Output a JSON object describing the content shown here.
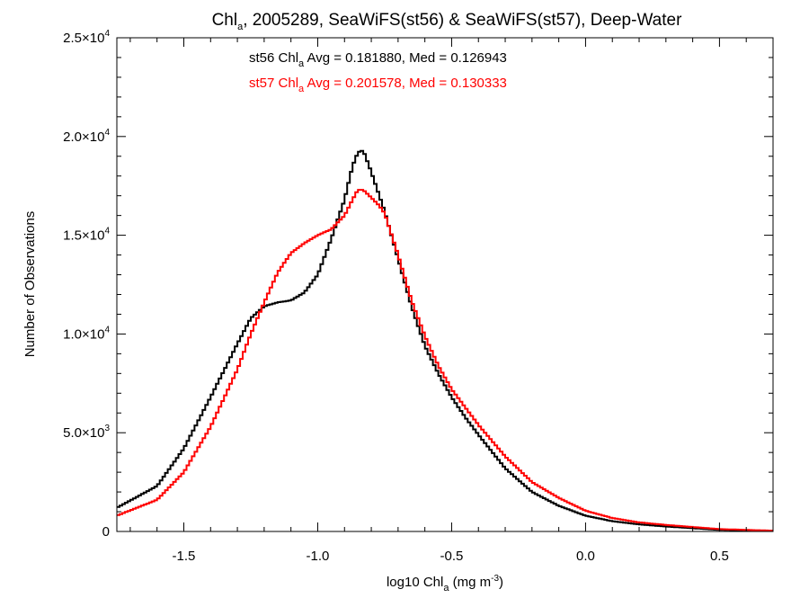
{
  "chart_data": {
    "type": "line",
    "title": {
      "pre": "Chl",
      "sub": "a",
      "post": ", 2005289, SeaWiFS(st56) & SeaWiFS(st57), Deep-Water"
    },
    "xlabel": {
      "pre": "log10 Chl",
      "sub": "a",
      "mid": " (mg m",
      "sup": "-3",
      "post": ")"
    },
    "ylabel": "Number of Observations",
    "xlim": [
      -1.75,
      0.7
    ],
    "ylim": [
      0,
      25000
    ],
    "grid": false,
    "x_ticks": [
      {
        "value": -1.5,
        "label": "-1.5"
      },
      {
        "value": -1.0,
        "label": "-1.0"
      },
      {
        "value": -0.5,
        "label": "-0.5"
      },
      {
        "value": 0.0,
        "label": "0.0"
      },
      {
        "value": 0.5,
        "label": "0.5"
      }
    ],
    "y_ticks": [
      {
        "value": 0,
        "mant": "0",
        "exp": ""
      },
      {
        "value": 5000,
        "mant": "5.0×10",
        "exp": "3"
      },
      {
        "value": 10000,
        "mant": "1.0×10",
        "exp": "4"
      },
      {
        "value": 15000,
        "mant": "1.5×10",
        "exp": "4"
      },
      {
        "value": 20000,
        "mant": "2.0×10",
        "exp": "4"
      },
      {
        "value": 25000,
        "mant": "2.5×10",
        "exp": "4"
      }
    ],
    "annotations": [
      {
        "pre": "st56 Chl",
        "sub": "a",
        "post": " Avg = 0.181880, Med = 0.126943",
        "color": "#000000"
      },
      {
        "pre": "st57 Chl",
        "sub": "a",
        "post": " Avg = 0.201578, Med = 0.130333",
        "color": "#ff0000"
      }
    ],
    "series": [
      {
        "color": "#000000",
        "x": [
          -1.75,
          -1.6,
          -1.5,
          -1.4,
          -1.3,
          -1.25,
          -1.2,
          -1.15,
          -1.1,
          -1.05,
          -1.0,
          -0.95,
          -0.9,
          -0.87,
          -0.85,
          -0.83,
          -0.8,
          -0.77,
          -0.75,
          -0.7,
          -0.65,
          -0.6,
          -0.55,
          -0.5,
          -0.45,
          -0.4,
          -0.3,
          -0.2,
          -0.1,
          0.0,
          0.1,
          0.2,
          0.3,
          0.5,
          0.7
        ],
        "y": [
          1200,
          2300,
          4200,
          6800,
          9500,
          10800,
          11400,
          11600,
          11700,
          12100,
          13000,
          14800,
          16800,
          18500,
          19200,
          19300,
          18200,
          17000,
          16200,
          13800,
          11400,
          9400,
          8000,
          6800,
          5800,
          4900,
          3200,
          2000,
          1300,
          800,
          520,
          360,
          250,
          80,
          30
        ]
      },
      {
        "color": "#ff0000",
        "x": [
          -1.75,
          -1.6,
          -1.5,
          -1.4,
          -1.3,
          -1.25,
          -1.2,
          -1.15,
          -1.1,
          -1.05,
          -1.0,
          -0.95,
          -0.9,
          -0.87,
          -0.85,
          -0.83,
          -0.8,
          -0.77,
          -0.75,
          -0.7,
          -0.65,
          -0.6,
          -0.55,
          -0.5,
          -0.45,
          -0.4,
          -0.3,
          -0.2,
          -0.1,
          0.0,
          0.1,
          0.2,
          0.3,
          0.5,
          0.7
        ],
        "y": [
          800,
          1600,
          3000,
          5300,
          8200,
          10000,
          11600,
          13100,
          14100,
          14600,
          15000,
          15300,
          16000,
          16800,
          17300,
          17300,
          16900,
          16500,
          16100,
          14000,
          11700,
          9900,
          8400,
          7200,
          6300,
          5400,
          3800,
          2500,
          1700,
          1050,
          680,
          460,
          330,
          120,
          40
        ]
      }
    ]
  }
}
